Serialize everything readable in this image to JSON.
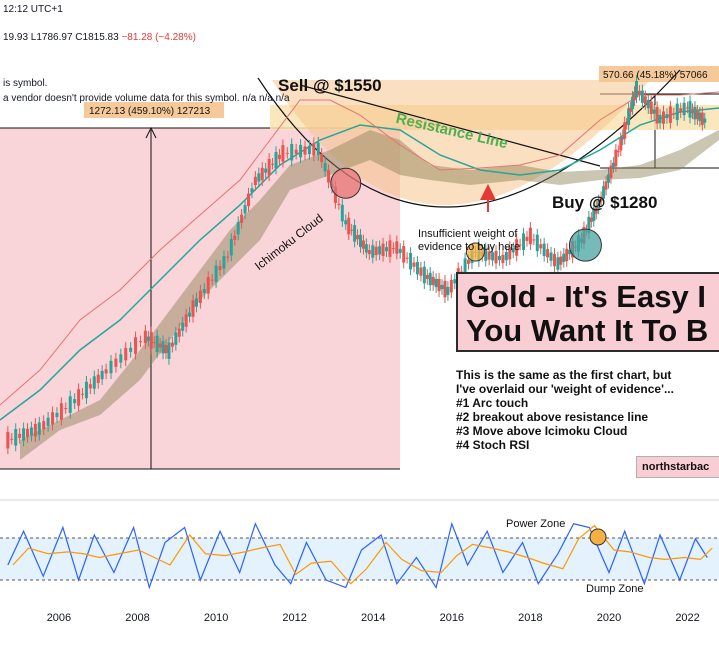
{
  "header": {
    "time": "12:12 UTC+1",
    "ohlc": "19.93  L1786.97  C1815.83",
    "change": "−81.28 (−4.28%)",
    "vol_line1": "is symbol.",
    "vol_line2": "a vendor doesn't provide volume data for this symbol.  n/a  n/a  n/a"
  },
  "annotations": {
    "sell": "Sell @ $1550",
    "buy": "Buy @ $1280",
    "resistance": "Resistance Line",
    "cloud": "Ichimoku Cloud",
    "insufficient_1": "Insufficient weight of",
    "insufficient_2": "evidence to buy here",
    "measure_left": "1272.13 (459.10%) 127213",
    "measure_right": "570.66 (45.18%) 57066"
  },
  "title": {
    "line1": "Gold - It's Easy I",
    "line2": "You Want It To B"
  },
  "description": {
    "intro1": "This is the same as the first chart, but",
    "intro2": "I've overlaid our 'weight of evidence'...",
    "items": [
      "#1 Arc touch",
      "#2 breakout above resistance line",
      "#3 Move above Icimoku Cloud",
      "#4 Stoch RSI"
    ]
  },
  "brand": "northstarbac",
  "zones": {
    "power": "Power Zone",
    "dump": "Dump Zone"
  },
  "chart_data": {
    "type": "line",
    "x_tick_labels": [
      "2006",
      "2008",
      "2010",
      "2012",
      "2014",
      "2016",
      "2018",
      "2020",
      "2022"
    ],
    "price": {
      "x": [
        2004.7,
        2005.5,
        2006.4,
        2007.2,
        2008.2,
        2008.8,
        2009.5,
        2010.3,
        2011.0,
        2011.7,
        2012.6,
        2013.3,
        2013.9,
        2014.6,
        2015.3,
        2015.9,
        2016.6,
        2017.3,
        2018.0,
        2018.7,
        2019.3,
        2019.8,
        2020.3,
        2020.7,
        2021.3,
        2022.0,
        2022.5
      ],
      "y": [
        430,
        480,
        600,
        730,
        880,
        820,
        1030,
        1230,
        1560,
        1680,
        1700,
        1380,
        1250,
        1270,
        1150,
        1080,
        1250,
        1220,
        1320,
        1200,
        1300,
        1480,
        1720,
        1960,
        1830,
        1880,
        1815
      ]
    },
    "arc_touches": [
      {
        "x": 2013.3,
        "y": 1550,
        "label": "Sell @ $1550"
      },
      {
        "x": 2016.6,
        "y": 1250,
        "label": "Insufficient weight of evidence to buy here"
      },
      {
        "x": 2019.4,
        "y": 1280,
        "label": "Buy @ $1280"
      }
    ],
    "measurements": [
      {
        "label": "1272.13 (459.10%) 127213"
      },
      {
        "label": "570.66 (45.18%) 57066"
      }
    ],
    "stoch_rsi": {
      "x": [
        2004.7,
        2005.1,
        2005.6,
        2006.1,
        2006.5,
        2006.9,
        2007.4,
        2007.9,
        2008.3,
        2008.7,
        2009.2,
        2009.6,
        2010.1,
        2010.6,
        2011.0,
        2011.5,
        2011.9,
        2012.3,
        2012.8,
        2013.3,
        2013.7,
        2014.2,
        2014.6,
        2015.1,
        2015.6,
        2016.0,
        2016.4,
        2016.9,
        2017.3,
        2017.8,
        2018.2,
        2018.7,
        2019.1,
        2019.5,
        2020.0,
        2020.4,
        2020.9,
        2021.3,
        2021.8,
        2022.2,
        2022.5
      ],
      "k": [
        40,
        85,
        25,
        90,
        20,
        80,
        30,
        90,
        10,
        70,
        90,
        20,
        85,
        30,
        95,
        40,
        15,
        70,
        20,
        10,
        60,
        80,
        15,
        50,
        10,
        95,
        40,
        85,
        30,
        70,
        15,
        55,
        95,
        90,
        30,
        85,
        15,
        80,
        20,
        75,
        50
      ],
      "power_zone": 80,
      "dump_zone": 20
    }
  }
}
